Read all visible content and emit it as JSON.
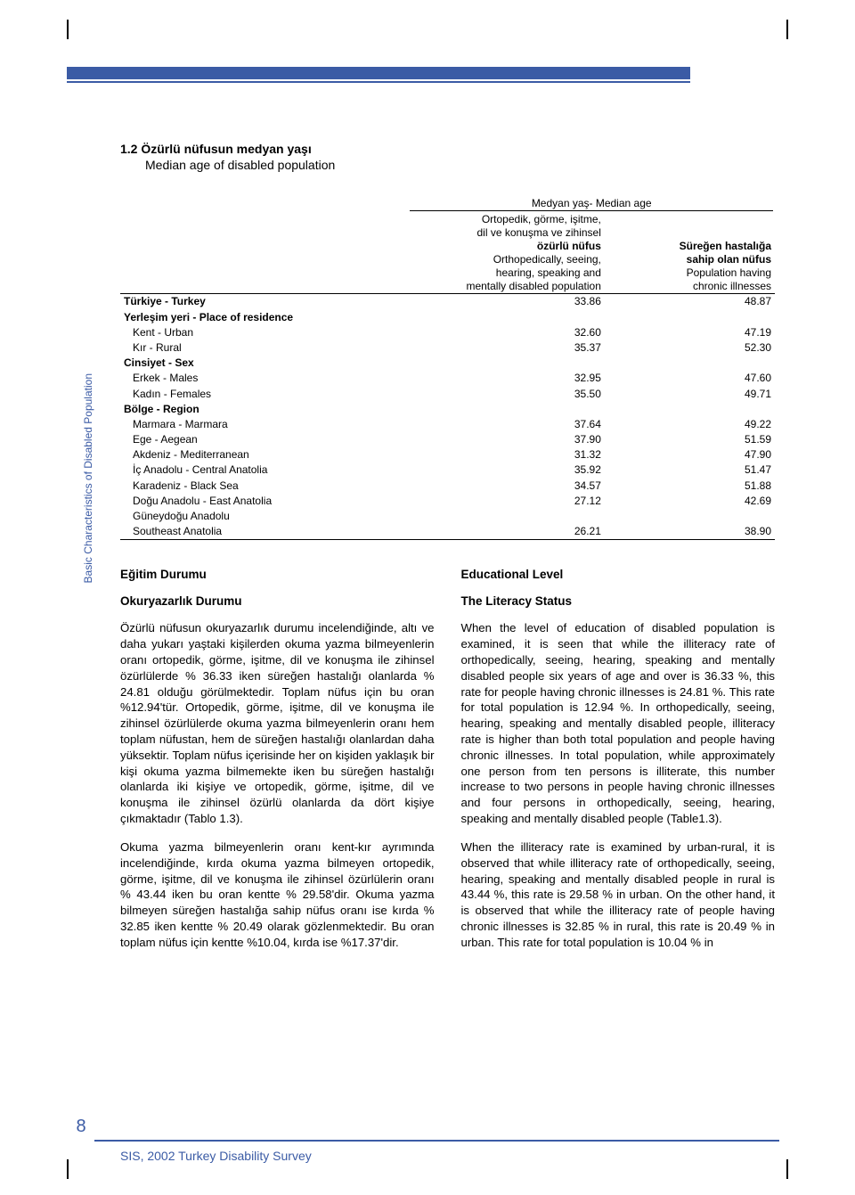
{
  "sideLabel": "Basic Characteristics of Disabled Population",
  "section": {
    "number": "1.2",
    "title_tr": "Özürlü nüfusun medyan yaşı",
    "title_en": "Median age of disabled population"
  },
  "table": {
    "superHeader": "Medyan yaş- Median age",
    "colHeaders": {
      "col1_l1": "Ortopedik, görme, işitme,",
      "col1_l2": "dil ve konuşma ve zihinsel",
      "col1_l3b": "özürlü nüfus",
      "col1_l4": "Orthopedically, seeing,",
      "col1_l5": "hearing, speaking and",
      "col1_l6": "mentally disabled population",
      "col2_l1b": "Süreğen hastalığa",
      "col2_l2b": "sahip olan nüfus",
      "col2_l3": "Population having",
      "col2_l4": "chronic illnesses"
    },
    "rows": [
      {
        "label": "Türkiye - Turkey",
        "bold": true,
        "v1": "33.86",
        "v2": "48.87"
      },
      {
        "label": "Yerleşim yeri - Place of residence",
        "bold": true,
        "v1": "",
        "v2": ""
      },
      {
        "label": "Kent - Urban",
        "indent": true,
        "v1": "32.60",
        "v2": "47.19"
      },
      {
        "label": "Kır - Rural",
        "indent": true,
        "v1": "35.37",
        "v2": "52.30"
      },
      {
        "label": "Cinsiyet - Sex",
        "bold": true,
        "v1": "",
        "v2": ""
      },
      {
        "label": "Erkek - Males",
        "indent": true,
        "v1": "32.95",
        "v2": "47.60"
      },
      {
        "label": "Kadın - Females",
        "indent": true,
        "v1": "35.50",
        "v2": "49.71"
      },
      {
        "label": "Bölge - Region",
        "bold": true,
        "v1": "",
        "v2": ""
      },
      {
        "label": "Marmara - Marmara",
        "indent": true,
        "v1": "37.64",
        "v2": "49.22"
      },
      {
        "label": "Ege - Aegean",
        "indent": true,
        "v1": "37.90",
        "v2": "51.59"
      },
      {
        "label": "Akdeniz - Mediterranean",
        "indent": true,
        "v1": "31.32",
        "v2": "47.90"
      },
      {
        "label": "İç Anadolu - Central Anatolia",
        "indent": true,
        "v1": "35.92",
        "v2": "51.47"
      },
      {
        "label": "Karadeniz - Black Sea",
        "indent": true,
        "v1": "34.57",
        "v2": "51.88"
      },
      {
        "label": "Doğu Anadolu - East Anatolia",
        "indent": true,
        "v1": "27.12",
        "v2": "42.69"
      },
      {
        "label": "Güneydoğu Anadolu",
        "indent": true,
        "v1": "",
        "v2": ""
      },
      {
        "label": "Southeast Anatolia",
        "indent": true,
        "v1": "26.21",
        "v2": "38.90"
      }
    ]
  },
  "left": {
    "h1": "Eğitim Durumu",
    "h2": "Okuryazarlık Durumu",
    "p1": "Özürlü nüfusun okuryazarlık durumu incelendiğinde, altı ve daha yukarı yaştaki kişilerden okuma yazma bilmeyenlerin oranı ortopedik, görme, işitme, dil ve konuşma ile zihinsel özürlülerde % 36.33 iken süreğen hastalığı olanlarda % 24.81 olduğu görülmektedir. Toplam nüfus için bu oran %12.94'tür. Ortopedik, görme, işitme, dil ve konuşma ile zihinsel özürlülerde okuma yazma bilmeyenlerin oranı hem toplam nüfustan, hem de süreğen hastalığı olanlardan daha yüksektir. Toplam nüfus içerisinde her on kişiden yaklaşık bir kişi okuma yazma bilmemekte iken bu süreğen hastalığı olanlarda iki kişiye ve ortopedik, görme, işitme, dil ve konuşma ile zihinsel özürlü olanlarda da dört kişiye çıkmaktadır (Tablo 1.3).",
    "p2": "Okuma yazma bilmeyenlerin oranı kent-kır ayrımında incelendiğinde, kırda okuma yazma bilmeyen ortopedik, görme, işitme, dil ve konuşma ile zihinsel özürlülerin oranı % 43.44 iken bu oran kentte  % 29.58'dir. Okuma yazma bilmeyen süreğen hastalığa sahip nüfus oranı ise  kırda % 32.85 iken kentte  % 20.49 olarak gözlenmektedir. Bu  oran  toplam nüfus için  kentte  %10.04,  kırda  ise  %17.37'dir."
  },
  "right": {
    "h1": "Educational Level",
    "h2": "The Literacy Status",
    "p1": "When the level of education of disabled population is examined, it is seen that while the illiteracy rate of orthopedically, seeing, hearing, speaking and mentally disabled people six years of age and over is 36.33 %, this rate for people having chronic illnesses is 24.81 %. This rate for total population is 12.94 %. In orthopedically, seeing, hearing, speaking and mentally disabled people, illiteracy rate is higher than both total population and people having chronic illnesses. In total population, while approximately one person from ten persons is illiterate, this number increase to two persons in people having chronic illnesses and four persons in  orthopedically, seeing, hearing, speaking and mentally disabled people (Table1.3).",
    "p2": "When the illiteracy rate is examined by urban-rural, it is observed that while illiteracy rate of orthopedically, seeing, hearing, speaking and mentally disabled people in rural is 43.44 %, this rate is 29.58 % in urban. On the other hand, it is observed that while the illiteracy rate of people having chronic illnesses  is  32.85  % in  rural,  this rate is   20.49    %  in   urban.  This  rate  for   total  population  is  10.04  %  in"
  },
  "footer": {
    "pageNum": "8",
    "text": "SIS, 2002 Turkey Disability Survey"
  },
  "colors": {
    "brand": "#3b5ba5",
    "text": "#000000",
    "bg": "#ffffff"
  }
}
